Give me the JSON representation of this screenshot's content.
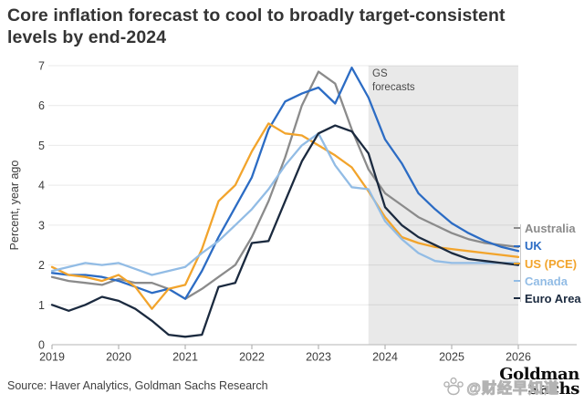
{
  "header": {
    "title_line1": "Core inflation forecast to cool to broadly target-consistent",
    "title_line2": "levels by end-2024"
  },
  "footer": {
    "source": "Source: Haver Analytics, Goldman Sachs Research",
    "logo_line1": "Goldman",
    "logo_line2": "Sachs",
    "watermark_text": "@财经早知道"
  },
  "chart_data": {
    "type": "line",
    "title": "Core inflation forecast to cool to broadly target-consistent levels by end-2024",
    "xlabel": "",
    "ylabel": "Percent, year ago",
    "x_unit": "quarterly",
    "x_range": [
      2019,
      2026
    ],
    "x_ticks": [
      "2019",
      "2020",
      "2021",
      "2022",
      "2023",
      "2024",
      "2025",
      "2026"
    ],
    "ylim": [
      0,
      7
    ],
    "y_ticks": [
      "0",
      "1",
      "2",
      "3",
      "4",
      "5",
      "6",
      "7"
    ],
    "grid": "horizontal",
    "legend_position": "right",
    "forecast_region": {
      "label_line1": "GS",
      "label_line2": "forecasts",
      "x_from": 2023.75,
      "x_to": 2026,
      "fill": "#e9e9e9"
    },
    "series": [
      {
        "name": "Australia",
        "color": "#8b8b8b",
        "values": [
          1.7,
          1.6,
          1.55,
          1.5,
          1.65,
          1.55,
          1.55,
          1.4,
          1.15,
          1.4,
          1.7,
          2.0,
          2.7,
          3.6,
          4.7,
          6.0,
          6.85,
          6.55,
          5.4,
          4.4,
          3.8,
          3.5,
          3.2,
          3.0,
          2.8,
          2.65,
          2.55,
          2.5,
          2.45
        ]
      },
      {
        "name": "UK",
        "color": "#2c6cc4",
        "values": [
          1.8,
          1.75,
          1.75,
          1.7,
          1.6,
          1.45,
          1.3,
          1.4,
          1.15,
          1.85,
          2.7,
          3.45,
          4.2,
          5.4,
          6.1,
          6.3,
          6.45,
          6.05,
          6.95,
          6.2,
          5.15,
          4.55,
          3.8,
          3.4,
          3.05,
          2.8,
          2.6,
          2.45,
          2.35
        ]
      },
      {
        "name": "US (PCE)",
        "color": "#f2a42c",
        "values": [
          1.95,
          1.75,
          1.7,
          1.6,
          1.75,
          1.45,
          0.9,
          1.4,
          1.5,
          2.4,
          3.6,
          4.0,
          4.85,
          5.55,
          5.3,
          5.25,
          5.0,
          4.75,
          4.45,
          3.85,
          3.2,
          2.7,
          2.55,
          2.45,
          2.4,
          2.35,
          2.3,
          2.25,
          2.2
        ]
      },
      {
        "name": "Canada",
        "color": "#92bce5",
        "values": [
          1.85,
          1.95,
          2.05,
          2.0,
          2.05,
          1.9,
          1.75,
          1.85,
          1.95,
          2.3,
          2.6,
          3.0,
          3.4,
          3.9,
          4.5,
          5.0,
          5.3,
          4.5,
          3.95,
          3.9,
          3.1,
          2.65,
          2.3,
          2.1,
          2.05,
          2.05,
          2.05,
          2.05,
          2.05
        ]
      },
      {
        "name": "Euro Area",
        "color": "#1b2a3f",
        "values": [
          1.0,
          0.85,
          1.0,
          1.2,
          1.1,
          0.9,
          0.6,
          0.25,
          0.2,
          0.25,
          1.45,
          1.55,
          2.55,
          2.6,
          3.6,
          4.6,
          5.3,
          5.5,
          5.35,
          4.8,
          3.45,
          3.0,
          2.7,
          2.5,
          2.3,
          2.15,
          2.1,
          2.05,
          2.0
        ]
      }
    ]
  }
}
